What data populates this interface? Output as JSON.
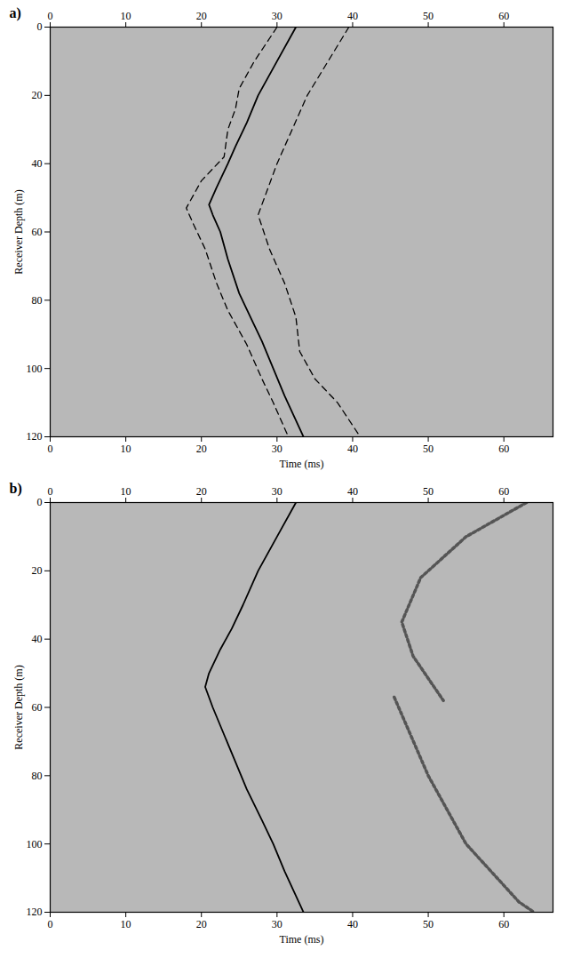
{
  "chart_data": [
    {
      "type": "line",
      "title": "a)",
      "x_label": "Time (ms)",
      "y_label": "Receiver Depth (m)",
      "xlim": [
        0,
        66.5
      ],
      "xticks": [
        0,
        10,
        20,
        30,
        40,
        50,
        60
      ],
      "ylim": [
        0,
        120
      ],
      "yticks": [
        0,
        20,
        40,
        60,
        80,
        100,
        120
      ],
      "series": [
        {
          "color": "#000000",
          "line_style": "solid",
          "x": [
            32.5,
            30,
            27.5,
            26,
            24.5,
            23.5,
            22,
            21,
            21.5,
            22.5,
            23.5,
            25,
            26.5,
            28,
            29.5,
            31,
            33.5
          ],
          "values": [
            0,
            10,
            20,
            28,
            35,
            40,
            47,
            52,
            55,
            60,
            68,
            78,
            85,
            92,
            100,
            108,
            120
          ]
        },
        {
          "color": "#000000",
          "line_style": "dashed",
          "x": [
            30,
            27,
            25,
            24.5,
            23.5,
            23,
            20,
            18,
            19,
            20.5,
            22,
            23.5,
            26,
            28,
            29.5,
            31.5
          ],
          "values": [
            0,
            10,
            18,
            24,
            30,
            38,
            45,
            53,
            58,
            65,
            75,
            83,
            93,
            103,
            110,
            120
          ]
        },
        {
          "color": "#000000",
          "line_style": "dashed",
          "x": [
            39.5,
            34,
            32,
            30,
            27.5,
            29,
            31,
            32.5,
            33,
            35,
            38,
            41
          ],
          "values": [
            0,
            20,
            30,
            40,
            55,
            65,
            75,
            85,
            95,
            103,
            110,
            120
          ]
        }
      ]
    },
    {
      "type": "line",
      "title": "b)",
      "x_label": "Time (ms)",
      "y_label": "Receiver Depth (m)",
      "xlim": [
        0,
        66.5
      ],
      "xticks": [
        0,
        10,
        20,
        30,
        40,
        50,
        60
      ],
      "ylim": [
        0,
        120
      ],
      "yticks": [
        0,
        20,
        40,
        60,
        80,
        100,
        120
      ],
      "series": [
        {
          "color": "#000000",
          "line_style": "solid",
          "x": [
            32.5,
            30,
            27.5,
            25.5,
            24,
            22.5,
            21,
            20.5,
            21.5,
            23,
            24.5,
            26,
            28,
            29.5,
            31,
            33.5
          ],
          "values": [
            0,
            10,
            20,
            30,
            37,
            43,
            50,
            54,
            60,
            68,
            76,
            84,
            93,
            100,
            108,
            120
          ]
        },
        {
          "color": "#555555",
          "line_style": "dotted",
          "x": [
            63,
            55,
            49,
            46.5,
            48,
            52
          ],
          "values": [
            0,
            10,
            22,
            35,
            45,
            58
          ]
        },
        {
          "color": "#555555",
          "line_style": "dotted",
          "x": [
            45.5,
            50,
            55,
            62,
            64
          ],
          "values": [
            57,
            80,
            100,
            117,
            120
          ]
        }
      ]
    }
  ]
}
